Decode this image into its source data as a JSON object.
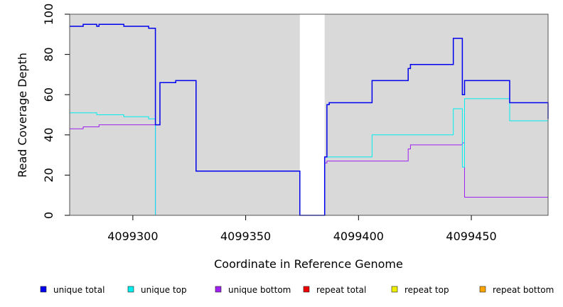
{
  "chart_data": {
    "type": "line",
    "xlabel": "Coordinate in Reference Genome",
    "ylabel": "Read Coverage Depth",
    "xlim": [
      4099272,
      4099484
    ],
    "ylim": [
      0,
      100
    ],
    "x_ticks": [
      4099300,
      4099350,
      4099400,
      4099450
    ],
    "y_ticks": [
      0,
      20,
      40,
      60,
      80,
      100
    ],
    "shaded_regions": [
      [
        4099272,
        4099374
      ],
      [
        4099385,
        4099484
      ]
    ],
    "background_color": "#d9d9d9",
    "legend_position": "bottom",
    "series": [
      {
        "name": "unique total",
        "color": "#0000ee",
        "steps": [
          [
            4099272,
            94
          ],
          [
            4099278,
            95
          ],
          [
            4099284,
            94
          ],
          [
            4099285,
            95
          ],
          [
            4099296,
            94
          ],
          [
            4099307,
            93
          ],
          [
            4099310,
            45
          ],
          [
            4099312,
            66
          ],
          [
            4099319,
            67
          ],
          [
            4099328,
            22
          ],
          [
            4099374,
            0
          ],
          [
            4099385,
            29
          ],
          [
            4099386,
            55
          ],
          [
            4099387,
            56
          ],
          [
            4099406,
            67
          ],
          [
            4099422,
            73
          ],
          [
            4099423,
            75
          ],
          [
            4099442,
            88
          ],
          [
            4099446,
            60
          ],
          [
            4099447,
            67
          ],
          [
            4099467,
            56
          ],
          [
            4099484,
            48
          ]
        ]
      },
      {
        "name": "unique top",
        "color": "#00eeee",
        "steps": [
          [
            4099272,
            51
          ],
          [
            4099284,
            50
          ],
          [
            4099296,
            49
          ],
          [
            4099307,
            48
          ],
          [
            4099310,
            0
          ],
          [
            4099385,
            29
          ],
          [
            4099406,
            40
          ],
          [
            4099442,
            53
          ],
          [
            4099446,
            24
          ],
          [
            4099447,
            58
          ],
          [
            4099467,
            47
          ],
          [
            4099484,
            40
          ]
        ]
      },
      {
        "name": "unique bottom",
        "color": "#a020f0",
        "steps": [
          [
            4099272,
            43
          ],
          [
            4099278,
            44
          ],
          [
            4099285,
            45
          ],
          [
            4099310,
            0
          ],
          [
            4099385,
            26
          ],
          [
            4099386,
            27
          ],
          [
            4099422,
            33
          ],
          [
            4099423,
            35
          ],
          [
            4099446,
            36
          ],
          [
            4099447,
            9
          ],
          [
            4099484,
            0
          ]
        ]
      },
      {
        "name": "repeat total",
        "color": "#ee0000",
        "steps": [
          [
            4099272,
            0
          ],
          [
            4099484,
            0
          ]
        ]
      },
      {
        "name": "repeat top",
        "color": "#eeee00",
        "steps": [
          [
            4099272,
            0
          ],
          [
            4099484,
            0
          ]
        ]
      },
      {
        "name": "repeat bottom",
        "color": "#ffa500",
        "steps": [
          [
            4099272,
            0
          ],
          [
            4099484,
            0
          ]
        ]
      }
    ]
  }
}
